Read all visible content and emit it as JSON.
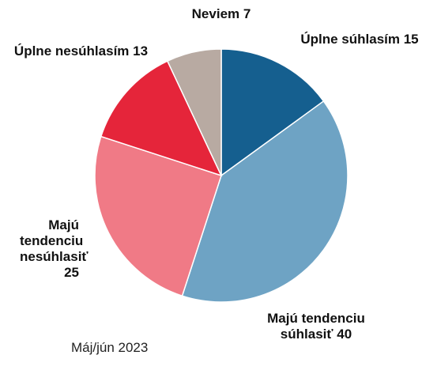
{
  "chart_data": {
    "type": "pie",
    "categories": [
      "Úplne súhlasím",
      "Majú tendenciu súhlasiť",
      "Majú tendenciu nesúhlasiť",
      "Úplne nesúhlasím",
      "Neviem"
    ],
    "values": [
      15,
      40,
      25,
      13,
      7
    ],
    "colors": [
      "#155f8f",
      "#6ea3c4",
      "#f07a86",
      "#e5253a",
      "#b8aaa2"
    ],
    "caption": "Máj/jún 2023"
  }
}
